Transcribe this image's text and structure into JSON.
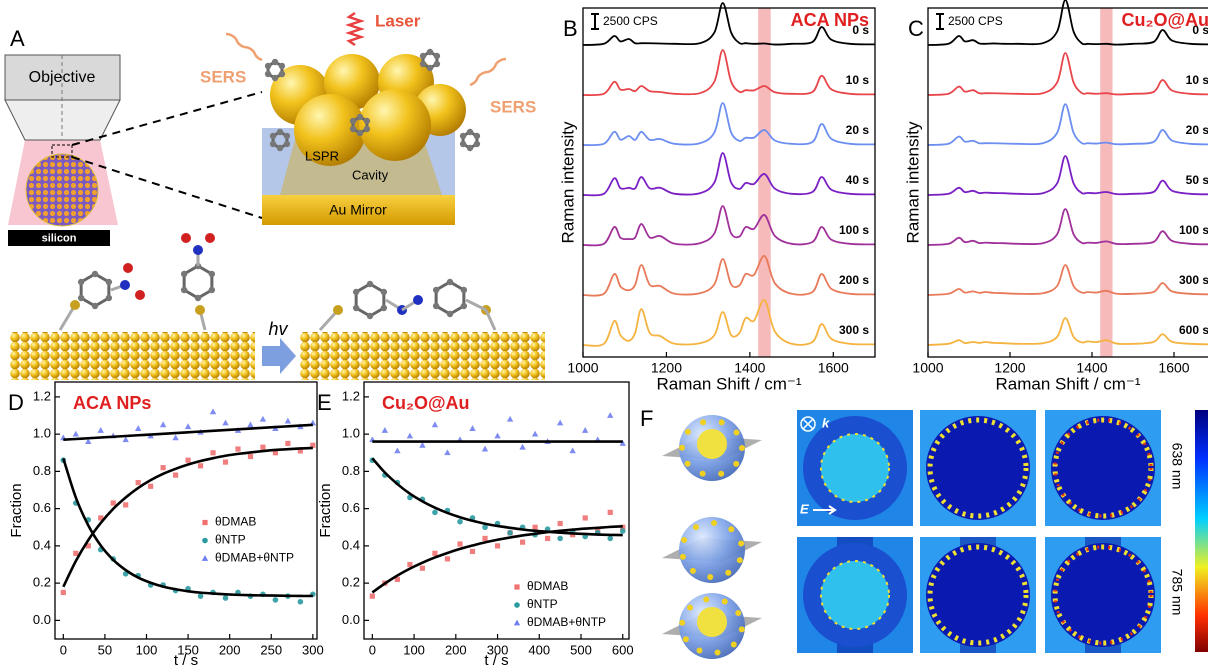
{
  "figure_a": {
    "letter": "A",
    "objective": "Objective",
    "substrate": "silicon",
    "laser": "Laser",
    "sers_left": "SERS",
    "sers_right": "SERS",
    "lspr": "LSPR",
    "cavity": "Cavity",
    "mirror": "Au Mirror",
    "photon": "hv"
  },
  "figure_f": {
    "letter": "F",
    "wavevector": "k",
    "field": "E",
    "wavelengths": [
      "638 nm",
      "785 nm"
    ]
  },
  "chart_data": [
    {
      "type": "line",
      "label": "B",
      "title": "ACA NPs",
      "title_color": "#e02020",
      "x_label": "Raman Shift / cm⁻¹",
      "y_label": "Raman intensity",
      "xlim": [
        1000,
        1700
      ],
      "xticks": [
        1000,
        1200,
        1400,
        1600
      ],
      "highlight": [
        1420,
        1450
      ],
      "highlight_color": "#f4a3a3",
      "scale_bar": {
        "value": 2500,
        "label": "2500 CPS"
      },
      "x": [
        1000,
        1050,
        1075,
        1090,
        1110,
        1125,
        1140,
        1160,
        1185,
        1220,
        1280,
        1315,
        1335,
        1355,
        1375,
        1390,
        1410,
        1435,
        1460,
        1500,
        1550,
        1572,
        1595,
        1640,
        1700
      ],
      "series": [
        {
          "name": "0 s",
          "color": "#000000",
          "values": [
            0,
            200,
            1500,
            600,
            1000,
            290,
            300,
            290,
            250,
            200,
            300,
            2100,
            7000,
            2100,
            320,
            300,
            195,
            250,
            75,
            200,
            500,
            3000,
            900,
            200,
            100
          ]
        },
        {
          "name": "10 s",
          "color": "#e8454a",
          "values": [
            0,
            200,
            2200,
            880,
            1000,
            650,
            1500,
            650,
            500,
            200,
            300,
            2250,
            7500,
            2250,
            520,
            800,
            770,
            1500,
            450,
            200,
            500,
            3200,
            960,
            200,
            100
          ]
        },
        {
          "name": "20 s",
          "color": "#6b8ef0",
          "values": [
            0,
            200,
            2200,
            880,
            1500,
            860,
            2200,
            860,
            1000,
            200,
            300,
            2100,
            7000,
            2100,
            680,
            1200,
            1230,
            2500,
            750,
            200,
            500,
            3500,
            1050,
            200,
            100
          ]
        },
        {
          "name": "40 s",
          "color": "#7a1fc4",
          "values": [
            0,
            200,
            2800,
            1120,
            1200,
            1100,
            3000,
            1100,
            1200,
            200,
            300,
            2100,
            7000,
            2100,
            1000,
            2000,
            1850,
            3500,
            1050,
            200,
            500,
            3000,
            900,
            200,
            100
          ]
        },
        {
          "name": "100 s",
          "color": "#a0309a",
          "values": [
            0,
            200,
            3000,
            1200,
            1000,
            1250,
            3500,
            1250,
            1500,
            200,
            300,
            1950,
            6500,
            1950,
            1400,
            3000,
            2700,
            5000,
            1500,
            200,
            500,
            3000,
            900,
            200,
            100
          ]
        },
        {
          "name": "200 s",
          "color": "#e87a5a",
          "values": [
            0,
            200,
            3500,
            1400,
            800,
            1700,
            5000,
            1700,
            1500,
            200,
            300,
            1800,
            6000,
            1800,
            1600,
            3500,
            3350,
            6500,
            1950,
            200,
            500,
            3500,
            1050,
            200,
            100
          ]
        },
        {
          "name": "300 s",
          "color": "#f5b340",
          "values": [
            0,
            200,
            4000,
            1600,
            700,
            2000,
            6000,
            2000,
            1500,
            200,
            300,
            1650,
            5500,
            1650,
            2000,
            4500,
            4050,
            7500,
            2250,
            200,
            500,
            3500,
            1050,
            200,
            100
          ]
        }
      ]
    },
    {
      "type": "line",
      "label": "C",
      "title": "Cu₂O@Au",
      "title_color": "#e02020",
      "x_label": "Raman Shift / cm⁻¹",
      "y_label": "Raman intensity",
      "xlim": [
        1000,
        1700
      ],
      "xticks": [
        1000,
        1200,
        1400,
        1600
      ],
      "highlight": [
        1420,
        1450
      ],
      "highlight_color": "#f4a3a3",
      "scale_bar": {
        "value": 2500,
        "label": "2500 CPS"
      },
      "x": [
        1000,
        1050,
        1075,
        1090,
        1110,
        1125,
        1140,
        1160,
        1185,
        1220,
        1280,
        1315,
        1335,
        1355,
        1375,
        1390,
        1410,
        1435,
        1460,
        1500,
        1550,
        1572,
        1595,
        1640,
        1700
      ],
      "series": [
        {
          "name": "0 s",
          "color": "#000000",
          "values": [
            0,
            200,
            1500,
            600,
            800,
            260,
            200,
            260,
            200,
            200,
            300,
            2250,
            7500,
            2250,
            280,
            200,
            140,
            200,
            60,
            200,
            500,
            2500,
            750,
            200,
            100
          ]
        },
        {
          "name": "10 s",
          "color": "#e8454a",
          "values": [
            0,
            200,
            1400,
            560,
            800,
            290,
            300,
            290,
            250,
            200,
            300,
            2100,
            7000,
            2100,
            320,
            300,
            210,
            300,
            90,
            200,
            500,
            2500,
            750,
            200,
            100
          ]
        },
        {
          "name": "20 s",
          "color": "#6b8ef0",
          "values": [
            0,
            200,
            1400,
            560,
            700,
            290,
            300,
            290,
            250,
            200,
            300,
            2040,
            6800,
            2040,
            320,
            300,
            240,
            400,
            120,
            200,
            500,
            2500,
            750,
            200,
            100
          ]
        },
        {
          "name": "50 s",
          "color": "#7a1fc4",
          "values": [
            0,
            200,
            1200,
            480,
            700,
            320,
            400,
            320,
            300,
            200,
            300,
            1950,
            6500,
            1950,
            340,
            350,
            290,
            500,
            150,
            200,
            500,
            2400,
            720,
            200,
            100
          ]
        },
        {
          "name": "100 s",
          "color": "#a0309a",
          "values": [
            0,
            200,
            1200,
            480,
            700,
            320,
            400,
            320,
            300,
            200,
            300,
            1800,
            6000,
            1800,
            360,
            400,
            340,
            600,
            180,
            200,
            500,
            2300,
            690,
            200,
            100
          ]
        },
        {
          "name": "300 s",
          "color": "#e87a5a",
          "values": [
            0,
            200,
            1000,
            400,
            600,
            350,
            500,
            350,
            300,
            200,
            300,
            1500,
            5000,
            1500,
            400,
            500,
            410,
            700,
            210,
            200,
            500,
            2000,
            600,
            200,
            100
          ]
        },
        {
          "name": "600 s",
          "color": "#f5b340",
          "values": [
            0,
            200,
            800,
            320,
            500,
            350,
            500,
            350,
            300,
            200,
            300,
            1350,
            4500,
            1350,
            440,
            600,
            480,
            800,
            240,
            200,
            500,
            1800,
            540,
            200,
            100
          ]
        }
      ]
    },
    {
      "type": "scatter",
      "label": "D",
      "title": "ACA NPs",
      "title_color": "#e02020",
      "x_label": "t / s",
      "y_label": "Fraction",
      "xlim": [
        -10,
        305
      ],
      "xticks": [
        0,
        50,
        100,
        150,
        200,
        250,
        300
      ],
      "ylim": [
        -0.1,
        1.28
      ],
      "yticks": [
        {
          "value": 0,
          "label": "0.0"
        },
        0.2,
        0.4,
        0.6,
        0.8,
        {
          "value": 1,
          "label": "1.0"
        },
        1.2
      ],
      "legend": "center right",
      "x": [
        0,
        15,
        30,
        45,
        60,
        75,
        90,
        105,
        120,
        135,
        150,
        165,
        180,
        195,
        210,
        225,
        240,
        255,
        270,
        285,
        300
      ],
      "series": [
        {
          "name": "θDMAB",
          "color": "#f07070",
          "marker": "square",
          "values": [
            0.15,
            0.36,
            0.4,
            0.55,
            0.63,
            0.62,
            0.74,
            0.72,
            0.82,
            0.78,
            0.86,
            0.83,
            0.9,
            0.85,
            0.92,
            0.88,
            0.93,
            0.9,
            0.95,
            0.91,
            0.94
          ]
        },
        {
          "name": "θNTP",
          "color": "#2a9aa0",
          "marker": "circle",
          "values": [
            0.86,
            0.63,
            0.54,
            0.38,
            0.33,
            0.25,
            0.24,
            0.19,
            0.19,
            0.16,
            0.17,
            0.13,
            0.15,
            0.12,
            0.15,
            0.13,
            0.14,
            0.11,
            0.13,
            0.1,
            0.14
          ]
        },
        {
          "name": "θDMAB+θNTP",
          "color": "#7080f0",
          "marker": "triangle",
          "values": [
            0.98,
            1.0,
            0.96,
            1.02,
            0.99,
            0.97,
            1.03,
            0.99,
            1.05,
            0.98,
            1.04,
            1.01,
            1.12,
            1.06,
            1.02,
            1.05,
            1.08,
            1.03,
            1.07,
            1.04,
            1.06
          ]
        }
      ],
      "fits": [
        {
          "color": "#000000",
          "values": [
            0.18,
            0.318,
            0.431,
            0.523,
            0.599,
            0.66,
            0.711,
            0.753,
            0.787,
            0.814,
            0.837,
            0.856,
            0.871,
            0.884,
            0.894,
            0.902,
            0.909,
            0.915,
            0.919,
            0.923,
            0.926
          ]
        },
        {
          "color": "#000000",
          "values": [
            0.87,
            0.66,
            0.51,
            0.402,
            0.325,
            0.27,
            0.23,
            0.202,
            0.181,
            0.167,
            0.156,
            0.149,
            0.144,
            0.14,
            0.137,
            0.135,
            0.134,
            0.133,
            0.132,
            0.131,
            0.131
          ]
        },
        {
          "color": "#000000",
          "values": [
            0.97,
            0.974,
            0.978,
            0.982,
            0.986,
            0.99,
            0.994,
            0.998,
            1.002,
            1.006,
            1.01,
            1.014,
            1.018,
            1.022,
            1.026,
            1.03,
            1.034,
            1.038,
            1.042,
            1.046,
            1.05
          ]
        }
      ]
    },
    {
      "type": "scatter",
      "label": "E",
      "title": "Cu₂O@Au",
      "title_color": "#e02020",
      "x_label": "t / s",
      "y_label": "Fraction",
      "xlim": [
        -20,
        615
      ],
      "xticks": [
        0,
        100,
        200,
        300,
        400,
        500,
        600
      ],
      "ylim": [
        -0.1,
        1.28
      ],
      "yticks": [
        {
          "value": 0,
          "label": "0.0"
        },
        0.2,
        0.4,
        0.6,
        0.8,
        {
          "value": 1,
          "label": "1.0"
        },
        1.2
      ],
      "legend": "lower right",
      "x": [
        0,
        30,
        60,
        90,
        120,
        150,
        180,
        210,
        240,
        270,
        300,
        330,
        360,
        390,
        420,
        450,
        480,
        510,
        540,
        570,
        600
      ],
      "series": [
        {
          "name": "θDMAB",
          "color": "#f07070",
          "marker": "square",
          "values": [
            0.13,
            0.2,
            0.22,
            0.3,
            0.28,
            0.36,
            0.33,
            0.41,
            0.37,
            0.44,
            0.4,
            0.47,
            0.42,
            0.5,
            0.44,
            0.52,
            0.46,
            0.55,
            0.48,
            0.58,
            0.5
          ]
        },
        {
          "name": "θNTP",
          "color": "#2a9aa0",
          "marker": "circle",
          "values": [
            0.86,
            0.78,
            0.74,
            0.66,
            0.65,
            0.58,
            0.59,
            0.53,
            0.55,
            0.5,
            0.52,
            0.47,
            0.5,
            0.46,
            0.49,
            0.44,
            0.48,
            0.45,
            0.47,
            0.44,
            0.48
          ]
        },
        {
          "name": "θDMAB+θNTP",
          "color": "#7080f0",
          "marker": "triangle",
          "values": [
            0.97,
            1.02,
            0.91,
            0.99,
            0.94,
            1.05,
            0.9,
            0.97,
            1.03,
            0.92,
            0.99,
            1.08,
            0.93,
            1.0,
            0.96,
            1.06,
            0.91,
            1.02,
            0.97,
            1.1,
            0.95
          ]
        }
      ],
      "fits": [
        {
          "color": "#000000",
          "values": [
            0.15,
            0.198,
            0.241,
            0.278,
            0.31,
            0.338,
            0.362,
            0.384,
            0.402,
            0.419,
            0.433,
            0.445,
            0.456,
            0.465,
            0.474,
            0.481,
            0.487,
            0.493,
            0.497,
            0.502,
            0.505
          ]
        },
        {
          "color": "#000000",
          "values": [
            0.87,
            0.794,
            0.732,
            0.68,
            0.639,
            0.605,
            0.577,
            0.554,
            0.535,
            0.519,
            0.507,
            0.497,
            0.488,
            0.481,
            0.476,
            0.471,
            0.467,
            0.464,
            0.461,
            0.459,
            0.458
          ]
        },
        {
          "color": "#000000",
          "values": [
            0.96,
            0.96,
            0.96,
            0.96,
            0.96,
            0.96,
            0.96,
            0.96,
            0.96,
            0.96,
            0.96,
            0.96,
            0.96,
            0.96,
            0.96,
            0.96,
            0.96,
            0.96,
            0.96,
            0.96,
            0.96
          ]
        }
      ]
    }
  ]
}
